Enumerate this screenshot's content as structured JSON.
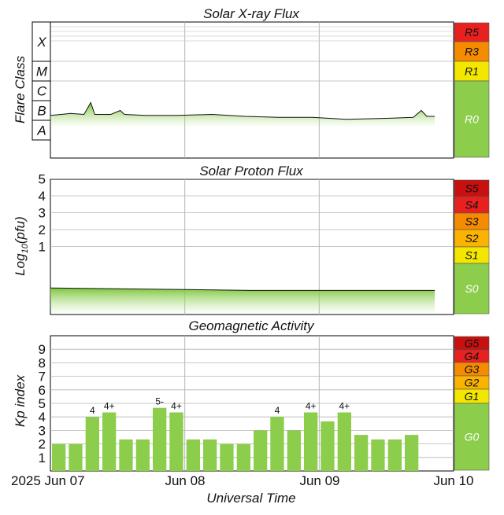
{
  "colors": {
    "green": "#8ccd4b",
    "yellow": "#f3e600",
    "orange_light": "#f9b300",
    "orange": "#f58b00",
    "red": "#e82020",
    "red_dark": "#c81010",
    "grid": "#b5b5b5"
  },
  "xaxis": {
    "title": "Universal Time",
    "ticks": [
      "2025 Jun 07",
      "Jun 08",
      "Jun 09",
      "Jun 10"
    ]
  },
  "chart_data": [
    {
      "type": "area",
      "title": "Solar X-ray Flux",
      "ylabel": "Flare Class",
      "y_classes": [
        "A",
        "B",
        "C",
        "M",
        "X"
      ],
      "scale": [
        {
          "label": "R5",
          "color": "red"
        },
        {
          "label": "R3",
          "color": "orange"
        },
        {
          "label": "R1",
          "color": "yellow"
        },
        {
          "label": "R0",
          "color": "green"
        }
      ],
      "x_range": [
        "2025-06-07",
        "2025-06-10"
      ],
      "series": [
        {
          "x": 0.0,
          "y": 1.25
        },
        {
          "x": 0.08,
          "y": 1.3
        },
        {
          "x": 0.15,
          "y": 1.35
        },
        {
          "x": 0.25,
          "y": 1.3
        },
        {
          "x": 0.3,
          "y": 1.9
        },
        {
          "x": 0.33,
          "y": 1.3
        },
        {
          "x": 0.45,
          "y": 1.3
        },
        {
          "x": 0.52,
          "y": 1.5
        },
        {
          "x": 0.55,
          "y": 1.3
        },
        {
          "x": 0.7,
          "y": 1.25
        },
        {
          "x": 0.95,
          "y": 1.25
        },
        {
          "x": 1.2,
          "y": 1.3
        },
        {
          "x": 1.45,
          "y": 1.2
        },
        {
          "x": 1.7,
          "y": 1.15
        },
        {
          "x": 1.95,
          "y": 1.15
        },
        {
          "x": 2.2,
          "y": 1.05
        },
        {
          "x": 2.5,
          "y": 1.1
        },
        {
          "x": 2.7,
          "y": 1.15
        },
        {
          "x": 2.76,
          "y": 1.5
        },
        {
          "x": 2.8,
          "y": 1.2
        },
        {
          "x": 2.86,
          "y": 1.2
        }
      ]
    },
    {
      "type": "area",
      "title": "Solar Proton Flux",
      "ylabel": "Log10(pfu)",
      "ylabel_base": "Log",
      "ylabel_sub": "10",
      "ylabel_tail": "(pfu)",
      "yticks": [
        1,
        2,
        3,
        4,
        5
      ],
      "ylim": [
        -2.5,
        6
      ],
      "scale": [
        {
          "label": "S5",
          "color": "red_dark"
        },
        {
          "label": "S4",
          "color": "red"
        },
        {
          "label": "S3",
          "color": "orange"
        },
        {
          "label": "S2",
          "color": "orange_light"
        },
        {
          "label": "S1",
          "color": "yellow"
        },
        {
          "label": "S0",
          "color": "green"
        }
      ],
      "series": [
        {
          "x": 0.0,
          "y": -1.45
        },
        {
          "x": 0.5,
          "y": -1.5
        },
        {
          "x": 1.0,
          "y": -1.55
        },
        {
          "x": 1.5,
          "y": -1.6
        },
        {
          "x": 2.0,
          "y": -1.6
        },
        {
          "x": 2.5,
          "y": -1.6
        },
        {
          "x": 2.86,
          "y": -1.6
        }
      ]
    },
    {
      "type": "bar",
      "title": "Geomagnetic Activity",
      "ylabel": "Kp index",
      "yticks": [
        1,
        2,
        3,
        4,
        5,
        6,
        7,
        8,
        9
      ],
      "ylim": [
        0,
        10
      ],
      "scale": [
        {
          "label": "G5",
          "color": "red_dark"
        },
        {
          "label": "G4",
          "color": "red"
        },
        {
          "label": "G3",
          "color": "orange"
        },
        {
          "label": "G2",
          "color": "orange_light"
        },
        {
          "label": "G1",
          "color": "yellow"
        },
        {
          "label": "G0",
          "color": "green"
        }
      ],
      "bar_interval_hours": 3,
      "values": [
        2.0,
        2.0,
        4.0,
        4.33,
        2.33,
        2.33,
        4.67,
        4.33,
        2.33,
        2.33,
        2.0,
        2.0,
        3.0,
        4.0,
        3.0,
        4.33,
        3.67,
        4.33,
        2.67,
        2.33,
        2.33,
        2.67
      ],
      "labels": [
        "",
        "",
        "4",
        "4+",
        "",
        "",
        "5-",
        "4+",
        "",
        "",
        "",
        "",
        "",
        "4",
        "",
        "4+",
        "",
        "4+",
        "",
        "",
        "",
        ""
      ]
    }
  ]
}
